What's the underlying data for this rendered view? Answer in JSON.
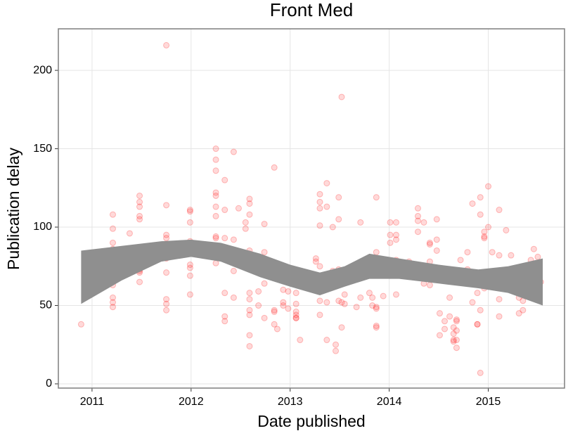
{
  "chart_data": {
    "type": "scatter",
    "title": "Front Med",
    "x_label": "Date published",
    "y_label": "Publication delay",
    "x": [
      2010.89,
      2011.21,
      2011.21,
      2011.21,
      2011.21,
      2011.21,
      2011.21,
      2011.21,
      2011.21,
      2011.21,
      2011.21,
      2011.21,
      2011.21,
      2011.21,
      2011.21,
      2011.38,
      2011.48,
      2011.48,
      2011.48,
      2011.48,
      2011.48,
      2011.48,
      2011.48,
      2011.48,
      2011.48,
      2011.48,
      2011.75,
      2011.75,
      2011.75,
      2011.75,
      2011.75,
      2011.75,
      2011.75,
      2011.75,
      2011.75,
      2011.75,
      2011.75,
      2011.99,
      2011.99,
      2011.99,
      2011.99,
      2011.99,
      2011.99,
      2011.99,
      2011.99,
      2011.99,
      2012.25,
      2012.25,
      2012.25,
      2012.25,
      2012.25,
      2012.25,
      2012.25,
      2012.25,
      2012.25,
      2012.25,
      2012.25,
      2012.34,
      2012.34,
      2012.34,
      2012.34,
      2012.34,
      2012.34,
      2012.34,
      2012.43,
      2012.43,
      2012.43,
      2012.43,
      2012.48,
      2012.55,
      2012.55,
      2012.59,
      2012.59,
      2012.59,
      2012.59,
      2012.59,
      2012.59,
      2012.59,
      2012.59,
      2012.59,
      2012.59,
      2012.59,
      2012.68,
      2012.68,
      2012.74,
      2012.74,
      2012.74,
      2012.74,
      2012.84,
      2012.84,
      2012.84,
      2012.84,
      2012.87,
      2012.93,
      2012.93,
      2012.93,
      2012.98,
      2012.98,
      2013.06,
      2013.06,
      2013.06,
      2013.06,
      2013.06,
      2013.06,
      2013.06,
      2013.06,
      2013.1,
      2013.1,
      2013.19,
      2013.19,
      2013.26,
      2013.26,
      2013.3,
      2013.3,
      2013.3,
      2013.3,
      2013.3,
      2013.3,
      2013.3,
      2013.37,
      2013.37,
      2013.37,
      2013.37,
      2013.43,
      2013.43,
      2013.46,
      2013.46,
      2013.49,
      2013.49,
      2013.49,
      2013.49,
      2013.52,
      2013.52,
      2013.52,
      2013.55,
      2013.55,
      2013.67,
      2013.71,
      2013.71,
      2013.76,
      2013.8,
      2013.83,
      2013.83,
      2013.87,
      2013.87,
      2013.87,
      2013.87,
      2013.87,
      2013.87,
      2013.94,
      2014.01,
      2014.01,
      2014.01,
      2014.01,
      2014.01,
      2014.01,
      2014.01,
      2014.07,
      2014.07,
      2014.07,
      2014.07,
      2014.07,
      2014.07,
      2014.2,
      2014.2,
      2014.29,
      2014.29,
      2014.29,
      2014.29,
      2014.35,
      2014.35,
      2014.35,
      2014.35,
      2014.41,
      2014.41,
      2014.41,
      2014.41,
      2014.48,
      2014.48,
      2014.48,
      2014.51,
      2014.51,
      2014.56,
      2014.56,
      2014.61,
      2014.61,
      2014.65,
      2014.65,
      2014.65,
      2014.65,
      2014.68,
      2014.68,
      2014.68,
      2014.68,
      2014.68,
      2014.72,
      2014.79,
      2014.79,
      2014.84,
      2014.84,
      2014.89,
      2014.89,
      2014.89,
      2014.92,
      2014.92,
      2014.92,
      2014.92,
      2014.92,
      2014.96,
      2014.96,
      2014.96,
      2014.96,
      2015.0,
      2015.0,
      2015.04,
      2015.11,
      2015.11,
      2015.11,
      2015.11,
      2015.18,
      2015.23,
      2015.31,
      2015.31,
      2015.35,
      2015.35,
      2015.43,
      2015.43,
      2015.46,
      2015.46,
      2015.46,
      2015.5,
      2015.5,
      2015.5,
      2015.53
    ],
    "values": [
      38,
      108,
      99,
      90,
      86,
      84,
      82,
      79,
      72,
      67,
      65,
      63,
      55,
      52,
      49,
      96,
      120,
      116,
      113,
      107,
      105,
      76,
      73,
      72,
      71,
      65,
      216,
      114,
      95,
      93,
      89,
      87,
      80,
      71,
      54,
      51,
      47,
      111,
      110,
      103,
      91,
      89,
      76,
      74,
      69,
      57,
      150,
      143,
      136,
      122,
      120,
      113,
      107,
      94,
      93,
      81,
      77,
      130,
      111,
      93,
      80,
      58,
      43,
      40,
      148,
      92,
      72,
      55,
      112,
      103,
      99,
      118,
      115,
      108,
      85,
      83,
      58,
      54,
      47,
      44,
      31,
      24,
      59,
      50,
      102,
      84,
      64,
      42,
      138,
      47,
      46,
      38,
      35,
      60,
      52,
      50,
      59,
      48,
      70,
      65,
      58,
      51,
      46,
      44,
      42,
      42,
      71,
      28,
      64,
      64,
      80,
      78,
      121,
      116,
      112,
      101,
      75,
      53,
      44,
      128,
      113,
      52,
      28,
      100,
      72,
      25,
      21,
      119,
      105,
      73,
      53,
      183,
      52,
      36,
      57,
      51,
      49,
      103,
      55,
      74,
      58,
      55,
      50,
      119,
      84,
      49,
      48,
      37,
      36,
      56,
      103,
      95,
      90,
      78,
      75,
      72,
      69,
      103,
      95,
      92,
      79,
      78,
      57,
      77,
      78,
      112,
      107,
      104,
      97,
      103,
      70,
      69,
      64,
      90,
      89,
      78,
      63,
      105,
      92,
      85,
      45,
      31,
      40,
      35,
      55,
      43,
      36,
      32,
      28,
      27,
      41,
      40,
      34,
      28,
      23,
      79,
      73,
      84,
      115,
      52,
      58,
      38,
      38,
      119,
      108,
      65,
      47,
      7,
      97,
      94,
      93,
      61,
      126,
      100,
      84,
      111,
      82,
      54,
      43,
      98,
      82,
      45,
      55,
      47,
      53,
      79,
      70,
      86,
      63,
      62,
      81,
      61,
      59,
      65
    ],
    "color": "#ff0000",
    "band": {
      "x": [
        2010.89,
        2011.3,
        2011.7,
        2012.0,
        2012.3,
        2012.7,
        2013.0,
        2013.3,
        2013.55,
        2013.8,
        2014.1,
        2014.5,
        2014.9,
        2015.2,
        2015.55
      ],
      "upper": [
        85,
        88,
        91,
        92,
        90,
        83,
        76,
        71,
        75,
        83,
        80,
        76,
        73,
        75,
        80
      ],
      "lower": [
        51,
        66,
        78,
        81,
        78,
        68,
        62,
        56.5,
        62,
        67,
        67,
        64,
        61,
        58,
        50
      ],
      "color": "#8f8f8f"
    },
    "xlim": [
      2010.66,
      2015.77
    ],
    "ylim": [
      -2.7,
      226.5
    ],
    "xticks": [
      2011,
      2012,
      2013,
      2014,
      2015
    ],
    "yticks": [
      0,
      50,
      100,
      150,
      200
    ],
    "grid": true
  }
}
